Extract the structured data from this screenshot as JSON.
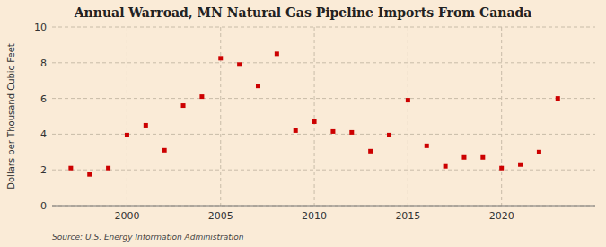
{
  "chart_data": {
    "type": "scatter",
    "title": "Annual Warroad, MN Natural Gas Pipeline Imports From Canada",
    "ylabel": "Dollars per Thousand Cubic Feet",
    "annotations": [
      "Source: U.S. Energy Information Administration"
    ],
    "x": [
      1997,
      1998,
      1999,
      2000,
      2001,
      2002,
      2003,
      2004,
      2005,
      2006,
      2007,
      2008,
      2009,
      2010,
      2011,
      2012,
      2013,
      2014,
      2015,
      2016,
      2017,
      2018,
      2019,
      2020,
      2021,
      2022,
      2023
    ],
    "values": [
      2.1,
      1.75,
      2.1,
      3.95,
      4.5,
      3.1,
      5.6,
      6.1,
      8.25,
      7.9,
      6.7,
      8.5,
      4.2,
      4.7,
      4.15,
      4.1,
      3.05,
      3.95,
      5.9,
      3.35,
      2.2,
      2.7,
      2.7,
      2.1,
      2.3,
      3.0,
      6.0
    ],
    "color": "#cc0000",
    "marker": "square",
    "xlim": [
      1996,
      2025
    ],
    "ylim": [
      0,
      10
    ],
    "xticks": [
      2000,
      2005,
      2010,
      2015,
      2020
    ],
    "yticks": [
      0,
      2,
      4,
      6,
      8,
      10
    ],
    "grid": true
  }
}
